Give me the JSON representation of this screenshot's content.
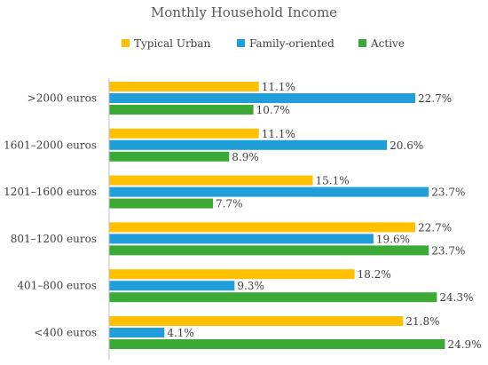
{
  "chart_data": {
    "type": "bar",
    "orientation": "horizontal",
    "title": "Monthly Household Income",
    "categories": [
      ">2000 euros",
      "1601–2000 euros",
      "1201–1600 euros",
      "801–1200 euros",
      "401–800 euros",
      "<400 euros"
    ],
    "series": [
      {
        "name": "Typical Urban",
        "color": "#FFC000",
        "values": [
          11.1,
          11.1,
          15.1,
          22.7,
          18.2,
          21.8
        ],
        "labels": [
          "11.1%",
          "11.1%",
          "15.1%",
          "22.7%",
          "18.2%",
          "21.8%"
        ]
      },
      {
        "name": "Family-oriented",
        "color": "#1F9ED9",
        "values": [
          22.7,
          20.6,
          23.7,
          19.6,
          9.3,
          4.1
        ],
        "labels": [
          "22.7%",
          "20.6%",
          "23.7%",
          "19.6%",
          "9.3%",
          "4.1%"
        ]
      },
      {
        "name": "Active",
        "color": "#3AAA35",
        "values": [
          10.7,
          8.9,
          7.7,
          23.7,
          24.3,
          24.9
        ],
        "labels": [
          "10.7%",
          "8.9%",
          "7.7%",
          "23.7%",
          "24.3%",
          "24.9%"
        ]
      }
    ],
    "value_unit": "%",
    "xlim": [
      0,
      25
    ],
    "grid": false,
    "legend_position": "top"
  }
}
